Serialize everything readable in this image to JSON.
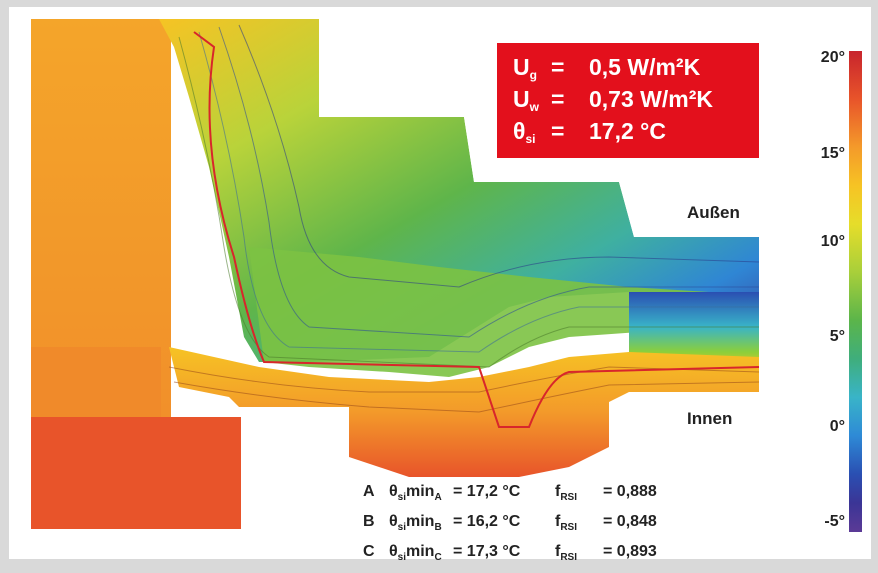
{
  "info": {
    "rows": [
      {
        "sym": "U",
        "sub": "g",
        "eq": "=",
        "value": "0,5 W/m²K"
      },
      {
        "sym": "U",
        "sub": "w",
        "eq": "=",
        "value": "0,73 W/m²K"
      },
      {
        "sym": "θ",
        "sub": "si",
        "eq": "=",
        "value": "17,2 °C"
      }
    ]
  },
  "labels": {
    "outside": "Außen",
    "inside": "Innen"
  },
  "scale": {
    "ticks": [
      "20°",
      "15°",
      "10°",
      "5°",
      "0°",
      "-5°"
    ]
  },
  "results": [
    {
      "point": "A",
      "theta": "θ",
      "theta_sub": "si",
      "min": "min",
      "min_sub": "A",
      "temp": "= 17,2 °C",
      "f": "f",
      "f_sub": "RSI",
      "fval": "= 0,888"
    },
    {
      "point": "B",
      "theta": "θ",
      "theta_sub": "si",
      "min": "min",
      "min_sub": "B",
      "temp": "= 16,2 °C",
      "f": "f",
      "f_sub": "RSI",
      "fval": "= 0,848"
    },
    {
      "point": "C",
      "theta": "θ",
      "theta_sub": "si",
      "min": "min",
      "min_sub": "C",
      "temp": "= 17,3 °C",
      "f": "f",
      "f_sub": "RSI",
      "fval": "= 0,893"
    }
  ],
  "colors": {
    "warm": "#f07a2a",
    "hot": "#e8542a",
    "green": "#7cc242",
    "blue": "#2e63c4",
    "red_box": "#e3101c",
    "isotherm": "#d8262b"
  }
}
